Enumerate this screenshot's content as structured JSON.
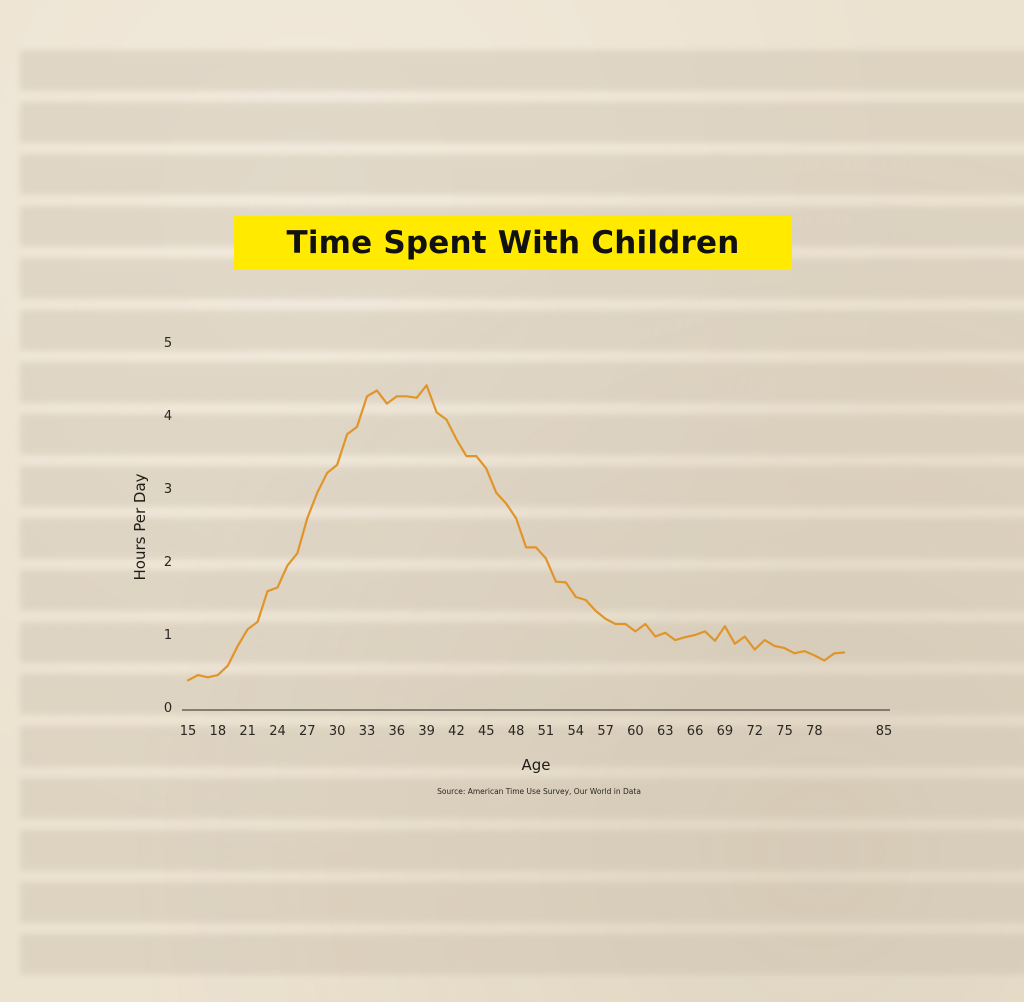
{
  "colors": {
    "title_highlight": "#ffea00",
    "line": "#e0952a",
    "axis": "#2a2722"
  },
  "chart_data": {
    "type": "line",
    "title": "Time Spent With Children",
    "xlabel": "Age",
    "ylabel": "Hours Per Day",
    "source": "Source: American Time Use Survey, Our World in Data",
    "xlim": [
      15,
      85
    ],
    "ylim": [
      0,
      5
    ],
    "xticks": [
      15,
      18,
      21,
      24,
      27,
      30,
      33,
      36,
      39,
      42,
      45,
      48,
      51,
      54,
      57,
      60,
      63,
      66,
      69,
      72,
      75,
      78,
      85
    ],
    "yticks": [
      0,
      1,
      2,
      3,
      4,
      5
    ],
    "grid": false,
    "legend": "none",
    "x": [
      15,
      16,
      17,
      18,
      19,
      20,
      21,
      22,
      23,
      24,
      25,
      26,
      27,
      28,
      29,
      30,
      31,
      32,
      33,
      34,
      35,
      36,
      37,
      38,
      39,
      40,
      41,
      42,
      43,
      44,
      45,
      46,
      47,
      48,
      49,
      50,
      51,
      52,
      53,
      54,
      55,
      56,
      57,
      58,
      59,
      60,
      61,
      62,
      63,
      64,
      65,
      66,
      67,
      68,
      69,
      70,
      71,
      72,
      73,
      74,
      75,
      76,
      77,
      78,
      79,
      80,
      81
    ],
    "y": [
      0.38,
      0.45,
      0.42,
      0.45,
      0.58,
      0.85,
      1.08,
      1.18,
      1.6,
      1.65,
      1.95,
      2.12,
      2.6,
      2.95,
      3.22,
      3.33,
      3.75,
      3.85,
      4.27,
      4.35,
      4.17,
      4.27,
      4.27,
      4.25,
      4.42,
      4.05,
      3.95,
      3.68,
      3.45,
      3.45,
      3.28,
      2.95,
      2.8,
      2.6,
      2.2,
      2.2,
      2.05,
      1.73,
      1.72,
      1.52,
      1.48,
      1.33,
      1.22,
      1.15,
      1.15,
      1.05,
      1.15,
      0.98,
      1.03,
      0.93,
      0.97,
      1.0,
      1.05,
      0.92,
      1.12,
      0.88,
      0.98,
      0.8,
      0.93,
      0.85,
      0.82,
      0.75,
      0.78,
      0.72,
      0.65,
      0.75,
      0.76
    ]
  }
}
